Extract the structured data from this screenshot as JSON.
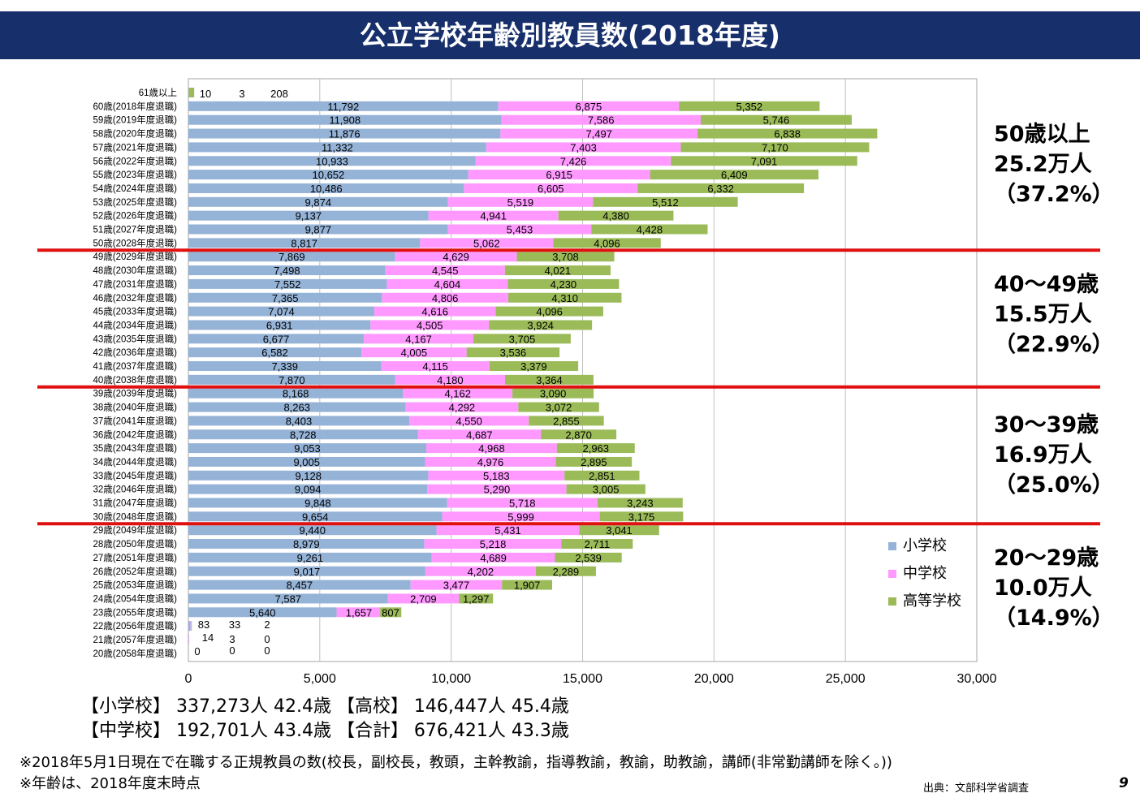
{
  "page": {
    "title": "公立学校年齢別教員数(2018年度)",
    "page_number": "9",
    "source": "出典：文部科学省調査"
  },
  "chart_data": {
    "type": "bar",
    "orientation": "horizontal",
    "stacked": true,
    "xlim": [
      0,
      30000
    ],
    "xticks": [
      "0",
      "5,000",
      "10,000",
      "15,000",
      "20,000",
      "25,000",
      "30,000"
    ],
    "categories": [
      "61歳以上",
      "60歳(2018年度退職)",
      "59歳(2019年度退職)",
      "58歳(2020年度退職)",
      "57歳(2021年度退職)",
      "56歳(2022年度退職)",
      "55歳(2023年度退職)",
      "54歳(2024年度退職)",
      "53歳(2025年度退職)",
      "52歳(2026年度退職)",
      "51歳(2027年度退職)",
      "50歳(2028年度退職)",
      "49歳(2029年度退職)",
      "48歳(2030年度退職)",
      "47歳(2031年度退職)",
      "46歳(2032年度退職)",
      "45歳(2033年度退職)",
      "44歳(2034年度退職)",
      "43歳(2035年度退職)",
      "42歳(2036年度退職)",
      "41歳(2037年度退職)",
      "40歳(2038年度退職)",
      "39歳(2039年度退職)",
      "38歳(2040年度退職)",
      "37歳(2041年度退職)",
      "36歳(2042年度退職)",
      "35歳(2043年度退職)",
      "34歳(2044年度退職)",
      "33歳(2045年度退職)",
      "32歳(2046年度退職)",
      "31歳(2047年度退職)",
      "30歳(2048年度退職)",
      "29歳(2049年度退職)",
      "28歳(2050年度退職)",
      "27歳(2051年度退職)",
      "26歳(2052年度退職)",
      "25歳(2053年度退職)",
      "24歳(2054年度退職)",
      "23歳(2055年度退職)",
      "22歳(2056年度退職)",
      "21歳(2057年度退職)",
      "20歳(2058年度退職)"
    ],
    "series": [
      {
        "name": "小学校",
        "color": "#95b3d7",
        "values": [
          10,
          11792,
          11908,
          11876,
          11332,
          10933,
          10652,
          10486,
          9874,
          9137,
          9877,
          8817,
          7869,
          7498,
          7552,
          7365,
          7074,
          6931,
          6677,
          6582,
          7339,
          7870,
          8168,
          8263,
          8403,
          8728,
          9053,
          9005,
          9128,
          9094,
          9848,
          9654,
          9440,
          8979,
          9261,
          9017,
          8457,
          7587,
          5640,
          83,
          14,
          0
        ],
        "labels": [
          "10",
          "11,792",
          "11,908",
          "11,876",
          "11,332",
          "10,933",
          "10,652",
          "10,486",
          "9,874",
          "9,137",
          "9,877",
          "8,817",
          "7,869",
          "7,498",
          "7,552",
          "7,365",
          "7,074",
          "6,931",
          "6,677",
          "6,582",
          "7,339",
          "7,870",
          "8,168",
          "8,263",
          "8,403",
          "8,728",
          "9,053",
          "9,005",
          "9,128",
          "9,094",
          "9,848",
          "9,654",
          "9,440",
          "8,979",
          "9,261",
          "9,017",
          "8,457",
          "7,587",
          "5,640",
          "83",
          "14",
          "0"
        ]
      },
      {
        "name": "中学校",
        "color": "#ff99ff",
        "values": [
          3,
          6875,
          7586,
          7497,
          7403,
          7426,
          6915,
          6605,
          5519,
          4941,
          5453,
          5062,
          4629,
          4545,
          4604,
          4806,
          4616,
          4505,
          4167,
          4005,
          4115,
          4180,
          4162,
          4292,
          4550,
          4687,
          4968,
          4976,
          5183,
          5290,
          5718,
          5999,
          5431,
          5218,
          4689,
          4202,
          3477,
          2709,
          1657,
          33,
          3,
          0
        ],
        "labels": [
          "3",
          "6,875",
          "7,586",
          "7,497",
          "7,403",
          "7,426",
          "6,915",
          "6,605",
          "5,519",
          "4,941",
          "5,453",
          "5,062",
          "4,629",
          "4,545",
          "4,604",
          "4,806",
          "4,616",
          "4,505",
          "4,167",
          "4,005",
          "4,115",
          "4,180",
          "4,162",
          "4,292",
          "4,550",
          "4,687",
          "4,968",
          "4,976",
          "5,183",
          "5,290",
          "5,718",
          "5,999",
          "5,431",
          "5,218",
          "4,689",
          "4,202",
          "3,477",
          "2,709",
          "1,657",
          "33",
          "3",
          "0"
        ]
      },
      {
        "name": "高等学校",
        "color": "#9bbb59",
        "values": [
          208,
          5352,
          5746,
          6838,
          7170,
          7091,
          6409,
          6332,
          5512,
          4380,
          4428,
          4096,
          3708,
          4021,
          4230,
          4310,
          4096,
          3924,
          3705,
          3536,
          3379,
          3364,
          3090,
          3072,
          2855,
          2870,
          2963,
          2895,
          2851,
          3005,
          3243,
          3175,
          3041,
          2711,
          2539,
          2289,
          1907,
          1297,
          807,
          2,
          0,
          0
        ],
        "labels": [
          "208",
          "5,352",
          "5,746",
          "6,838",
          "7,170",
          "7,091",
          "6,409",
          "6,332",
          "5,512",
          "4,380",
          "4,428",
          "4,096",
          "3,708",
          "4,021",
          "4,230",
          "4,310",
          "4,096",
          "3,924",
          "3,705",
          "3,536",
          "3,379",
          "3,364",
          "3,090",
          "3,072",
          "2,855",
          "2,870",
          "2,963",
          "2,895",
          "2,851",
          "3,005",
          "3,243",
          "3,175",
          "3,041",
          "2,711",
          "2,539",
          "2,289",
          "1,907",
          "1,297",
          "807",
          "2",
          "0",
          "0"
        ]
      }
    ],
    "group_dividers_after_rows": [
      11,
      21,
      31
    ],
    "divider_color": "#e01010"
  },
  "side_notes": [
    {
      "l1": "50歳以上",
      "l2": "25.2万人",
      "l3": "（37.2%）"
    },
    {
      "l1": "40〜49歳",
      "l2": "15.5万人",
      "l3": "（22.9%）"
    },
    {
      "l1": "30〜39歳",
      "l2": "16.9万人",
      "l3": "（25.0%）"
    },
    {
      "l1": "20〜29歳",
      "l2": "10.0万人",
      "l3": "（14.9%）"
    }
  ],
  "legend": [
    "小学校",
    "中学校",
    "高等学校"
  ],
  "summary": {
    "row1": "【小学校】 337,273人  42.4歳    【高校】 146,447人  45.4歳",
    "row2": "【中学校】 192,701人  43.4歳    【合計】 676,421人  43.3歳"
  },
  "footnotes": {
    "f1": "※2018年5月1日現在で在職する正規教員の数(校長，副校長，教頭，主幹教諭，指導教諭，教諭，助教諭，講師(非常勤講師を除く。))",
    "f2": "※年齢は、2018年度末時点"
  }
}
